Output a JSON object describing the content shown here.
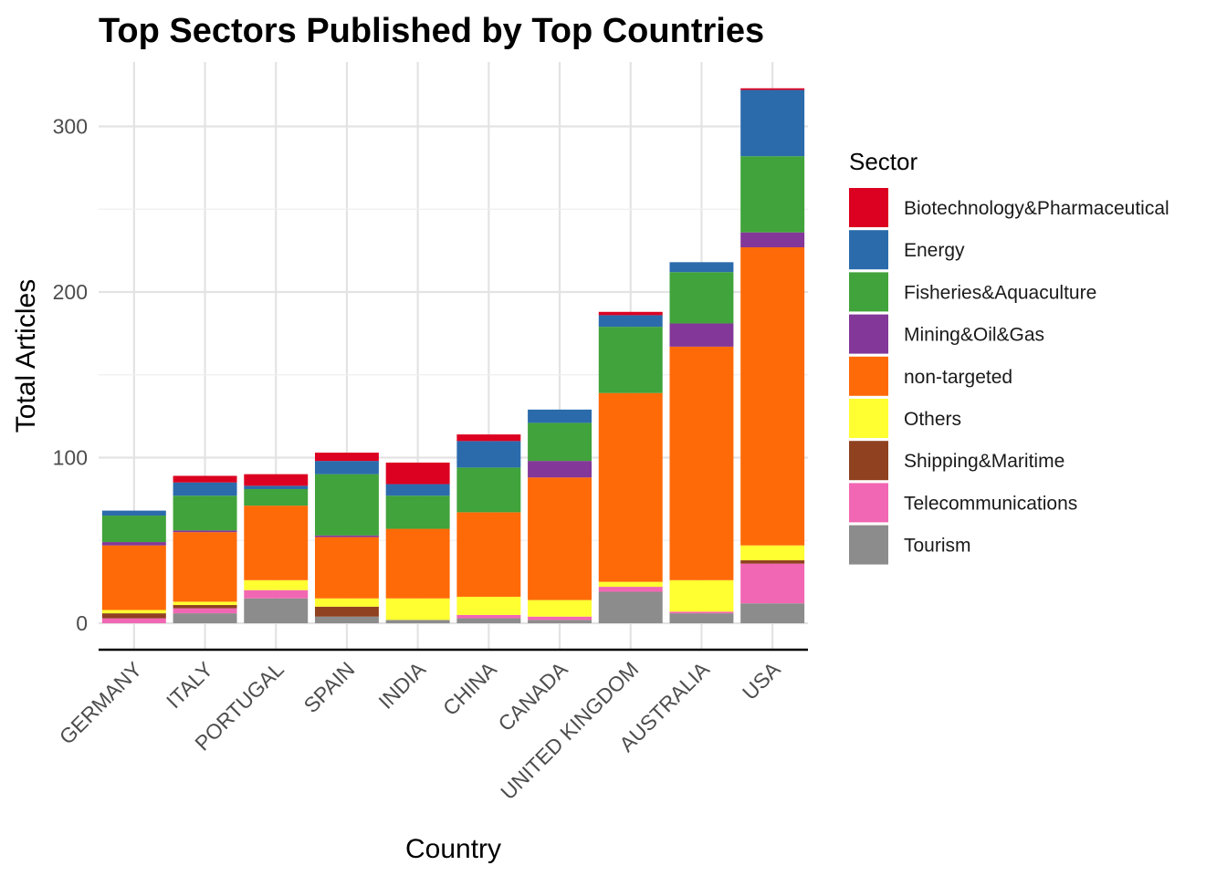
{
  "chart_data": {
    "type": "bar",
    "stacked": true,
    "title": "Top Sectors Published by Top Countries",
    "xlabel": "Country",
    "ylabel": "Total Articles",
    "ylim": [
      -15,
      323
    ],
    "yticks": [
      0,
      100,
      200,
      300
    ],
    "grid": true,
    "legend": {
      "title": "Sector",
      "position": "right"
    },
    "categories": [
      "GERMANY",
      "ITALY",
      "PORTUGAL",
      "SPAIN",
      "INDIA",
      "CHINA",
      "CANADA",
      "UNITED KINGDOM",
      "AUSTRALIA",
      "USA"
    ],
    "series": [
      {
        "name": "Tourism",
        "color": "#8c8c8c",
        "values": [
          0,
          6,
          15,
          4,
          2,
          3,
          2,
          19,
          6,
          12
        ]
      },
      {
        "name": "Telecommunications",
        "color": "#f167b3",
        "values": [
          3,
          3,
          5,
          0,
          0,
          2,
          2,
          3,
          1,
          24
        ]
      },
      {
        "name": "Shipping&Maritime",
        "color": "#8f4120",
        "values": [
          3,
          2,
          0,
          6,
          0,
          0,
          0,
          0,
          0,
          2
        ]
      },
      {
        "name": "Others",
        "color": "#ffff32",
        "values": [
          2,
          2,
          6,
          5,
          13,
          11,
          10,
          3,
          19,
          9
        ]
      },
      {
        "name": "non-targeted",
        "color": "#ff6a08",
        "values": [
          39,
          42,
          45,
          37,
          42,
          51,
          74,
          114,
          141,
          180
        ]
      },
      {
        "name": "Mining&Oil&Gas",
        "color": "#833798",
        "values": [
          2,
          1,
          0,
          1,
          0,
          0,
          10,
          0,
          14,
          9
        ]
      },
      {
        "name": "Fisheries&Aquaculture",
        "color": "#40a33b",
        "values": [
          16,
          21,
          10,
          37,
          20,
          27,
          23,
          40,
          31,
          46
        ]
      },
      {
        "name": "Energy",
        "color": "#2b6bac",
        "values": [
          3,
          8,
          2,
          8,
          7,
          16,
          8,
          7,
          6,
          40
        ]
      },
      {
        "name": "Biotechnology&Pharmaceutical",
        "color": "#dc0121",
        "values": [
          0,
          4,
          7,
          5,
          13,
          4,
          0,
          2,
          0,
          1
        ]
      }
    ]
  }
}
